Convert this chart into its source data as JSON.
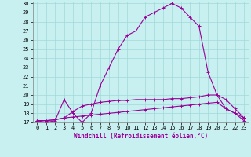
{
  "title": "",
  "xlabel": "Windchill (Refroidissement éolien,°C)",
  "ylabel": "",
  "bg_color": "#c8f0f0",
  "grid_color": "#a0d8d8",
  "line_color": "#990099",
  "xlim": [
    -0.5,
    23.5
  ],
  "ylim": [
    17,
    30.2
  ],
  "xticks": [
    0,
    1,
    2,
    3,
    4,
    5,
    6,
    7,
    8,
    9,
    10,
    11,
    12,
    13,
    14,
    15,
    16,
    17,
    18,
    19,
    20,
    21,
    22,
    23
  ],
  "yticks": [
    17,
    18,
    19,
    20,
    21,
    22,
    23,
    24,
    25,
    26,
    27,
    28,
    29,
    30
  ],
  "curve1_x": [
    0,
    1,
    2,
    3,
    4,
    5,
    6,
    7,
    8,
    9,
    10,
    11,
    12,
    13,
    14,
    15,
    16,
    17,
    18,
    19,
    20,
    21,
    22,
    23
  ],
  "curve1_y": [
    17.2,
    17.0,
    17.2,
    19.5,
    18.0,
    17.0,
    18.0,
    21.0,
    23.0,
    25.0,
    26.5,
    27.0,
    28.5,
    29.0,
    29.5,
    30.0,
    29.5,
    28.5,
    27.5,
    22.5,
    20.0,
    18.5,
    18.0,
    17.2
  ],
  "curve2_x": [
    0,
    1,
    2,
    3,
    4,
    5,
    6,
    7,
    8,
    9,
    10,
    11,
    12,
    13,
    14,
    15,
    16,
    17,
    18,
    19,
    20,
    21,
    22,
    23
  ],
  "curve2_y": [
    17.2,
    17.2,
    17.3,
    17.5,
    18.2,
    18.8,
    19.0,
    19.2,
    19.3,
    19.4,
    19.4,
    19.5,
    19.5,
    19.5,
    19.5,
    19.6,
    19.6,
    19.7,
    19.8,
    20.0,
    20.0,
    19.5,
    18.5,
    17.5
  ],
  "curve3_x": [
    0,
    1,
    2,
    3,
    4,
    5,
    6,
    7,
    8,
    9,
    10,
    11,
    12,
    13,
    14,
    15,
    16,
    17,
    18,
    19,
    20,
    21,
    22,
    23
  ],
  "curve3_y": [
    17.2,
    17.2,
    17.3,
    17.5,
    17.6,
    17.7,
    17.8,
    17.9,
    18.0,
    18.1,
    18.2,
    18.3,
    18.4,
    18.5,
    18.6,
    18.7,
    18.8,
    18.9,
    19.0,
    19.1,
    19.2,
    18.5,
    18.0,
    17.5
  ],
  "marker": "+",
  "markersize": 3,
  "linewidth": 0.8,
  "tick_fontsize": 5.0,
  "xlabel_fontsize": 5.5
}
